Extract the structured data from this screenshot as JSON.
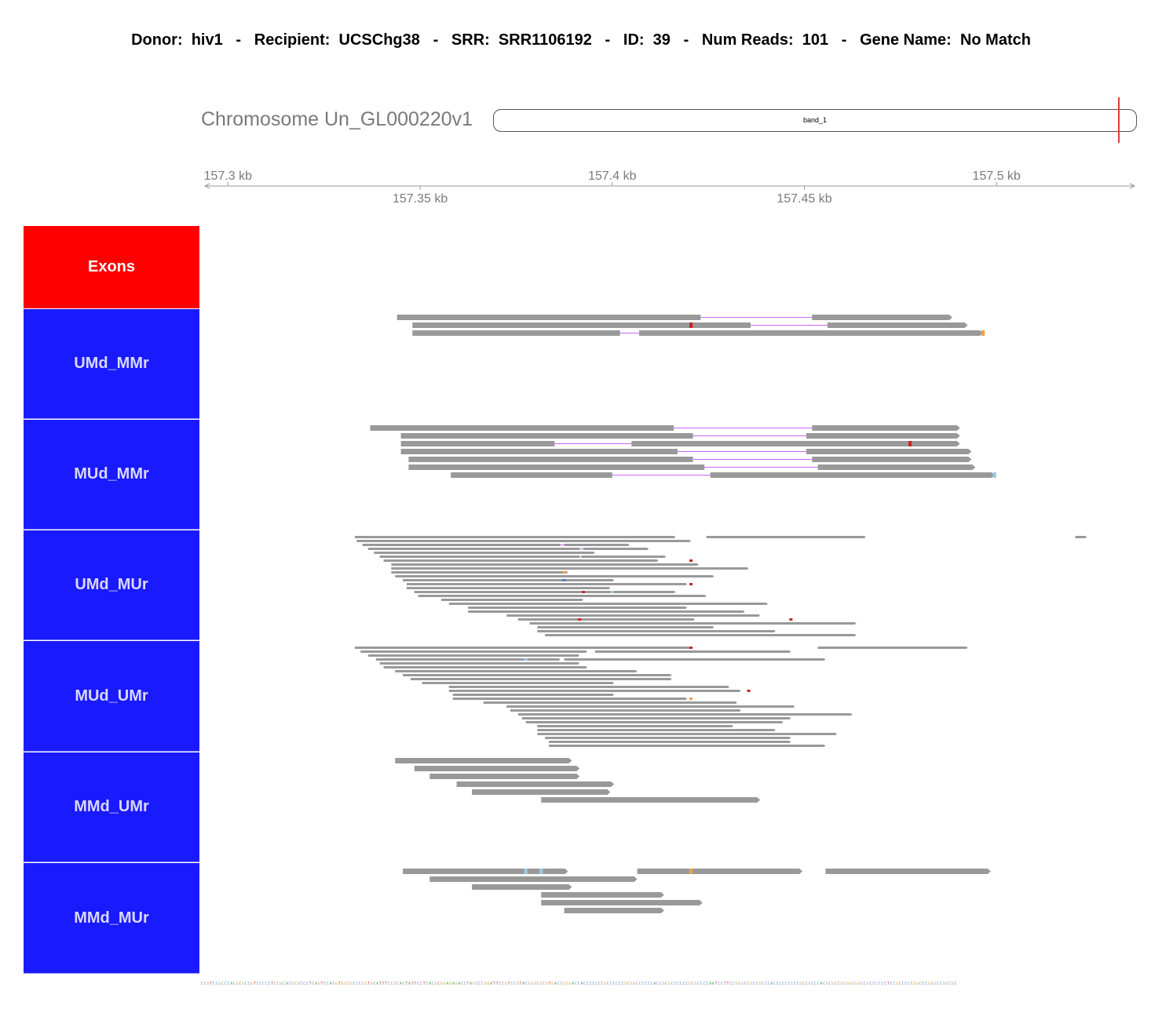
{
  "header": {
    "items": [
      {
        "key": "Donor:",
        "value": "hiv1"
      },
      {
        "key": "Recipient:",
        "value": "UCSChg38"
      },
      {
        "key": "SRR:",
        "value": "SRR1106192"
      },
      {
        "key": "ID:",
        "value": "39"
      },
      {
        "key": "Num Reads:",
        "value": "101"
      },
      {
        "key": "Gene Name:",
        "value": "No Match"
      }
    ],
    "separator": "-"
  },
  "chromosome": {
    "label": "Chromosome Un_GL000220v1",
    "band": "band_1"
  },
  "colors": {
    "exons": "#ff0000",
    "track": "#1a1aff",
    "read": "#999999",
    "junction": "#cc66ff",
    "mismatch_red": "#cc2222",
    "mismatch_orange": "#f5a040",
    "mismatch_lightblue": "#9ecae1",
    "mismatch_blue": "#4477cc",
    "marker": "#e03a3a"
  },
  "chart_data": {
    "type": "table",
    "xaxis": {
      "unit": "kb",
      "range": [
        157.294,
        157.5355
      ],
      "ticks_top": [
        "157.3 kb",
        "157.4 kb",
        "157.5 kb"
      ],
      "ticks_top_values": [
        157.3,
        157.4,
        157.5
      ],
      "ticks_bottom": [
        "157.35 kb",
        "157.45 kb"
      ],
      "ticks_bottom_values": [
        157.35,
        157.45
      ]
    },
    "tracks": [
      {
        "name": "Exons",
        "color": "#ff0000",
        "reads": []
      },
      {
        "name": "UMd_MMr",
        "color": "#1a1aff",
        "reads": [
          {
            "row": 0,
            "segs": [
              [
                157.344,
                157.423
              ],
              [
                157.452,
                157.4885
              ]
            ]
          },
          {
            "row": 1,
            "segs": [
              [
                157.348,
                157.436
              ],
              [
                157.456,
                157.4925
              ]
            ],
            "mm": [
              [
                157.4205,
                "r"
              ]
            ]
          },
          {
            "row": 2,
            "segs": [
              [
                157.348,
                157.402
              ],
              [
                157.407,
                157.4965
              ]
            ],
            "mm": [
              [
                157.4965,
                "o"
              ]
            ]
          }
        ]
      },
      {
        "name": "MUd_MMr",
        "color": "#1a1aff",
        "reads": [
          {
            "row": 0,
            "segs": [
              [
                157.337,
                157.416
              ],
              [
                157.452,
                157.4905
              ]
            ]
          },
          {
            "row": 1,
            "segs": [
              [
                157.345,
                157.421
              ],
              [
                157.4505,
                157.4905
              ]
            ]
          },
          {
            "row": 2,
            "segs": [
              [
                157.345,
                157.385
              ],
              [
                157.405,
                157.4905
              ]
            ],
            "mm": [
              [
                157.4775,
                "r"
              ]
            ]
          },
          {
            "row": 3,
            "segs": [
              [
                157.345,
                157.417
              ],
              [
                157.4505,
                157.4935
              ]
            ]
          },
          {
            "row": 4,
            "segs": [
              [
                157.347,
                157.421
              ],
              [
                157.452,
                157.4935
              ]
            ]
          },
          {
            "row": 5,
            "segs": [
              [
                157.347,
                157.424
              ],
              [
                157.4535,
                157.4945
              ]
            ]
          },
          {
            "row": 6,
            "segs": [
              [
                157.358,
                157.4
              ],
              [
                157.4255,
                157.4995
              ]
            ],
            "mm": [
              [
                157.4995,
                "lb"
              ]
            ]
          }
        ]
      },
      {
        "name": "UMd_MUr",
        "color": "#1a1aff",
        "reads": [
          {
            "row": 0,
            "segs": [
              [
                157.333,
                157.4165
              ]
            ]
          },
          {
            "row": 0,
            "segs": [
              [
                157.4245,
                157.466
              ]
            ]
          },
          {
            "row": 0,
            "segs": [
              [
                157.5205,
                157.5235
              ]
            ]
          },
          {
            "row": 1,
            "segs": [
              [
                157.3335,
                157.4205
              ]
            ]
          },
          {
            "row": 2,
            "segs": [
              [
                157.335,
                157.3865
              ],
              [
                157.3875,
                157.4045
              ]
            ]
          },
          {
            "row": 3,
            "segs": [
              [
                157.3365,
                157.3915
              ],
              [
                157.3925,
                157.4095
              ]
            ]
          },
          {
            "row": 4,
            "segs": [
              [
                157.338,
                157.3955
              ]
            ]
          },
          {
            "row": 5,
            "segs": [
              [
                157.3395,
                157.3915
              ],
              [
                157.392,
                157.414
              ]
            ]
          },
          {
            "row": 6,
            "segs": [
              [
                157.3405,
                157.412
              ]
            ],
            "mm": [
              [
                157.4205,
                "r"
              ]
            ]
          },
          {
            "row": 7,
            "segs": [
              [
                157.3425,
                157.4225
              ]
            ]
          },
          {
            "row": 8,
            "segs": [
              [
                157.3425,
                157.4355
              ]
            ]
          },
          {
            "row": 9,
            "segs": [
              [
                157.3425,
                157.3885
              ]
            ],
            "mm": [
              [
                157.3875,
                "o"
              ]
            ]
          },
          {
            "row": 10,
            "segs": [
              [
                157.3435,
                157.4265
              ]
            ]
          },
          {
            "row": 11,
            "segs": [
              [
                157.3455,
                157.4005
              ]
            ],
            "mm": [
              [
                157.3875,
                "b"
              ]
            ]
          },
          {
            "row": 12,
            "segs": [
              [
                157.3465,
                157.4195
              ]
            ],
            "mm": [
              [
                157.4205,
                "r"
              ]
            ]
          },
          {
            "row": 13,
            "segs": [
              [
                157.3465,
                157.3995
              ]
            ]
          },
          {
            "row": 14,
            "segs": [
              [
                157.3485,
                157.4165
              ]
            ],
            "mm": [
              [
                157.3925,
                "r"
              ],
              [
                157.4,
                "lb"
              ]
            ]
          },
          {
            "row": 15,
            "segs": [
              [
                157.3495,
                157.4245
              ]
            ]
          },
          {
            "row": 16,
            "segs": [
              [
                157.3555,
                157.3925
              ]
            ]
          },
          {
            "row": 17,
            "segs": [
              [
                157.3575,
                157.4405
              ]
            ]
          },
          {
            "row": 18,
            "segs": [
              [
                157.3625,
                157.4195
              ]
            ]
          },
          {
            "row": 19,
            "segs": [
              [
                157.3625,
                157.4345
              ]
            ]
          },
          {
            "row": 20,
            "segs": [
              [
                157.3725,
                157.4385
              ]
            ]
          },
          {
            "row": 21,
            "segs": [
              [
                157.3755,
                157.4215
              ]
            ],
            "mm": [
              [
                157.3915,
                "r"
              ],
              [
                157.4465,
                "r"
              ]
            ]
          },
          {
            "row": 22,
            "segs": [
              [
                157.3785,
                157.4635
              ]
            ]
          },
          {
            "row": 23,
            "segs": [
              [
                157.3805,
                157.4265
              ]
            ]
          },
          {
            "row": 24,
            "segs": [
              [
                157.3805,
                157.4425
              ]
            ]
          },
          {
            "row": 25,
            "segs": [
              [
                157.3825,
                157.4635
              ]
            ]
          }
        ]
      },
      {
        "name": "MUd_UMr",
        "color": "#1a1aff",
        "reads": [
          {
            "row": 0,
            "segs": [
              [
                157.333,
                157.4205
              ]
            ],
            "mm": [
              [
                157.4205,
                "r"
              ]
            ]
          },
          {
            "row": 0,
            "segs": [
              [
                157.4535,
                157.4925
              ]
            ]
          },
          {
            "row": 1,
            "segs": [
              [
                157.3345,
                157.3935
              ]
            ]
          },
          {
            "row": 1,
            "segs": [
              [
                157.3955,
                157.4465
              ]
            ]
          },
          {
            "row": 2,
            "segs": [
              [
                157.3365,
                157.3915
              ]
            ]
          },
          {
            "row": 3,
            "segs": [
              [
                157.3385,
                157.3865
              ]
            ],
            "mm": [
              [
                157.3775,
                "lb"
              ]
            ]
          },
          {
            "row": 3,
            "segs": [
              [
                157.3875,
                157.4555
              ]
            ]
          },
          {
            "row": 4,
            "segs": [
              [
                157.3395,
                157.3915
              ]
            ]
          },
          {
            "row": 5,
            "segs": [
              [
                157.3405,
                157.3935
              ]
            ]
          },
          {
            "row": 6,
            "segs": [
              [
                157.3435,
                157.4065
              ]
            ]
          },
          {
            "row": 7,
            "segs": [
              [
                157.3455,
                157.4155
              ]
            ]
          },
          {
            "row": 8,
            "segs": [
              [
                157.3475,
                157.4155
              ]
            ]
          },
          {
            "row": 9,
            "segs": [
              [
                157.3505,
                157.4005
              ]
            ]
          },
          {
            "row": 10,
            "segs": [
              [
                157.3575,
                157.4305
              ]
            ]
          },
          {
            "row": 11,
            "segs": [
              [
                157.3575,
                157.4335
              ]
            ],
            "mm": [
              [
                157.4355,
                "r"
              ]
            ]
          },
          {
            "row": 12,
            "segs": [
              [
                157.3585,
                157.4005
              ]
            ]
          },
          {
            "row": 13,
            "segs": [
              [
                157.3585,
                157.4195
              ]
            ],
            "mm": [
              [
                157.4205,
                "o"
              ]
            ]
          },
          {
            "row": 14,
            "segs": [
              [
                157.3665,
                157.4325
              ]
            ]
          },
          {
            "row": 15,
            "segs": [
              [
                157.3725,
                157.4475
              ]
            ]
          },
          {
            "row": 16,
            "segs": [
              [
                157.3735,
                157.4335
              ]
            ]
          },
          {
            "row": 17,
            "segs": [
              [
                157.3755,
                157.4625
              ]
            ]
          },
          {
            "row": 18,
            "segs": [
              [
                157.3765,
                157.4465
              ]
            ]
          },
          {
            "row": 19,
            "segs": [
              [
                157.3775,
                157.4445
              ]
            ]
          },
          {
            "row": 20,
            "segs": [
              [
                157.3805,
                157.4315
              ]
            ]
          },
          {
            "row": 21,
            "segs": [
              [
                157.3805,
                157.4425
              ]
            ]
          },
          {
            "row": 22,
            "segs": [
              [
                157.3805,
                157.4585
              ]
            ]
          },
          {
            "row": 23,
            "segs": [
              [
                157.3825,
                157.4465
              ]
            ]
          },
          {
            "row": 24,
            "segs": [
              [
                157.3835,
                157.4465
              ]
            ]
          },
          {
            "row": 25,
            "segs": [
              [
                157.3835,
                157.4555
              ]
            ]
          }
        ]
      },
      {
        "name": "MMd_UMr",
        "color": "#1a1aff",
        "reads": [
          {
            "row": 0,
            "segs": [
              [
                157.3435,
                157.3895
              ]
            ]
          },
          {
            "row": 1,
            "segs": [
              [
                157.3485,
                157.3915
              ]
            ]
          },
          {
            "row": 2,
            "segs": [
              [
                157.3525,
                157.3915
              ]
            ]
          },
          {
            "row": 3,
            "segs": [
              [
                157.3595,
                157.4005
              ]
            ]
          },
          {
            "row": 4,
            "segs": [
              [
                157.3635,
                157.3995
              ]
            ]
          },
          {
            "row": 5,
            "segs": [
              [
                157.3815,
                157.4385
              ]
            ]
          }
        ]
      },
      {
        "name": "MMd_MUr",
        "color": "#1a1aff",
        "reads": [
          {
            "row": 0,
            "segs": [
              [
                157.3455,
                157.3885
              ]
            ],
            "mm": [
              [
                157.3775,
                "lb"
              ],
              [
                157.3815,
                "lb"
              ]
            ]
          },
          {
            "row": 0,
            "segs": [
              [
                157.4065,
                157.4495
              ]
            ],
            "mm": [
              [
                157.4205,
                "o"
              ]
            ]
          },
          {
            "row": 0,
            "segs": [
              [
                157.4555,
                157.4985
              ]
            ]
          },
          {
            "row": 1,
            "segs": [
              [
                157.3525,
                157.4065
              ]
            ]
          },
          {
            "row": 2,
            "segs": [
              [
                157.3635,
                157.3895
              ]
            ]
          },
          {
            "row": 3,
            "segs": [
              [
                157.3815,
                157.4135
              ]
            ]
          },
          {
            "row": 4,
            "segs": [
              [
                157.3815,
                157.4235
              ]
            ]
          },
          {
            "row": 5,
            "segs": [
              [
                157.3875,
                157.4135
              ]
            ]
          }
        ]
      }
    ],
    "reference_sequence": "CCGTCCGCCCACGCGCCGTCCCCCTCCGCACGCGCCCTCAGTCCACGTGGCGCCCCGTGCATTTCCGCACTATTCCTCACGCGGAGAGACCTAGCCCGGATTCCGTCCGTACCGGCGCGTGACCGGGACCACCCCCCCGCCCCCCGCGGCCCCCCACCGCGCCCCCCGCGCCCCAATCCTTCCGCGCCGCCGCCCACCCCCCCCCGCCGCCCACGCGCCGCGGCGGCCGCCCCCCTCCGCCCCCGGCCCGCGCCGCCGC"
  }
}
